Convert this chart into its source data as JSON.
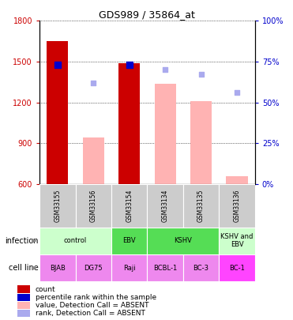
{
  "title": "GDS989 / 35864_at",
  "samples": [
    "GSM33155",
    "GSM33156",
    "GSM33154",
    "GSM33134",
    "GSM33135",
    "GSM33136"
  ],
  "bar_values": [
    1650,
    null,
    1490,
    null,
    null,
    null
  ],
  "bar_absent_values": [
    null,
    940,
    null,
    1340,
    1210,
    660
  ],
  "rank_present": [
    73,
    null,
    73,
    null,
    null,
    null
  ],
  "rank_absent": [
    null,
    62,
    null,
    70,
    67,
    56
  ],
  "bar_color_present": "#cc0000",
  "bar_color_absent": "#ffb3b3",
  "rank_color_present": "#0000cc",
  "rank_color_absent": "#aaaaee",
  "ylim_left": [
    600,
    1800
  ],
  "ylim_right": [
    0,
    100
  ],
  "yticks_left": [
    600,
    900,
    1200,
    1500,
    1800
  ],
  "yticks_right": [
    0,
    25,
    50,
    75,
    100
  ],
  "inf_groups": [
    {
      "start": 0,
      "end": 1,
      "label": "control",
      "color": "#ccffcc"
    },
    {
      "start": 2,
      "end": 2,
      "label": "EBV",
      "color": "#55dd55"
    },
    {
      "start": 3,
      "end": 4,
      "label": "KSHV",
      "color": "#55dd55"
    },
    {
      "start": 5,
      "end": 5,
      "label": "KSHV and\nEBV",
      "color": "#ccffcc"
    }
  ],
  "cell_lines": [
    "BJAB",
    "DG75",
    "Raji",
    "BCBL-1",
    "BC-3",
    "BC-1"
  ],
  "cell_line_colors": [
    "#ee88ee",
    "#ee88ee",
    "#ee88ee",
    "#ee88ee",
    "#ee88ee",
    "#ff44ff"
  ],
  "background_color": "#ffffff",
  "label_color_left": "#cc0000",
  "label_color_right": "#0000cc",
  "legend_items": [
    {
      "color": "#cc0000",
      "label": "count"
    },
    {
      "color": "#0000cc",
      "label": "percentile rank within the sample"
    },
    {
      "color": "#ffb3b3",
      "label": "value, Detection Call = ABSENT"
    },
    {
      "color": "#aaaaee",
      "label": "rank, Detection Call = ABSENT"
    }
  ]
}
